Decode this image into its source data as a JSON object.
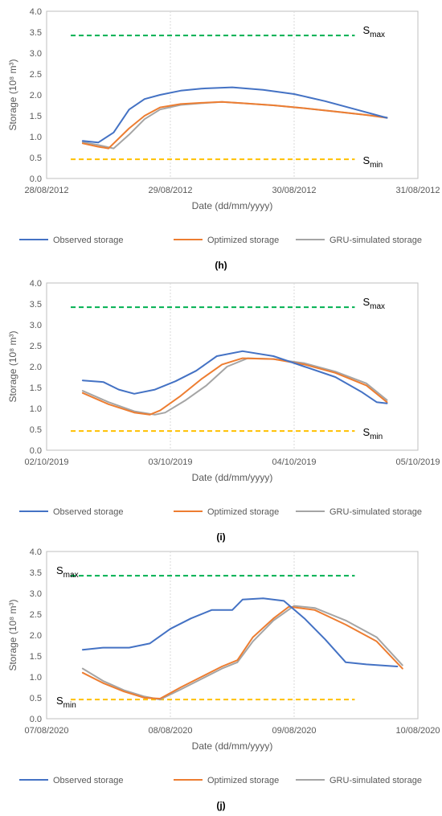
{
  "colors": {
    "observed": "#4472C4",
    "optimized": "#ED7D31",
    "gru": "#A5A5A5",
    "smax_line": "#00B050",
    "smin_line": "#FFC000",
    "grid": "#D9D9D9",
    "axis": "#BFBFBF",
    "text": "#595959"
  },
  "legend_labels": [
    "Observed storage",
    "Optimized storage",
    "GRU-simulated storage"
  ],
  "chart_data": [
    {
      "type": "line",
      "caption": "(h)",
      "ylabel": "Storage (10⁸ m³)",
      "xlabel": "Date (dd/mm/yyyy)",
      "ylim": [
        0,
        4
      ],
      "yticks": [
        "0.0",
        "0.5",
        "1.0",
        "1.5",
        "2.0",
        "2.5",
        "3.0",
        "3.5",
        "4.0"
      ],
      "xticks": [
        "28/08/2012",
        "29/08/2012",
        "30/08/2012",
        "31/08/2012"
      ],
      "smax": {
        "value": 3.42,
        "label": "S",
        "sub": "max",
        "label_side": "right"
      },
      "smin": {
        "value": 0.46,
        "label": "S",
        "sub": "min",
        "label_side": "right"
      },
      "grid": "vertical",
      "legend_position": "bottom",
      "series": [
        {
          "name": "Observed storage",
          "color_key": "observed",
          "x": [
            "28/08/2012 07:00",
            "28/08/2012 10:00",
            "28/08/2012 13:00",
            "28/08/2012 16:00",
            "28/08/2012 19:00",
            "28/08/2012 22:00",
            "29/08/2012 02:00",
            "29/08/2012 06:00",
            "29/08/2012 12:00",
            "29/08/2012 18:00",
            "30/08/2012 00:00",
            "30/08/2012 06:00",
            "30/08/2012 12:00",
            "30/08/2012 18:00"
          ],
          "y": [
            0.9,
            0.86,
            1.1,
            1.65,
            1.9,
            2.0,
            2.1,
            2.15,
            2.18,
            2.12,
            2.02,
            1.85,
            1.65,
            1.45
          ]
        },
        {
          "name": "Optimized storage",
          "color_key": "optimized",
          "x": [
            "28/08/2012 07:00",
            "28/08/2012 10:00",
            "28/08/2012 12:00",
            "28/08/2012 16:00",
            "28/08/2012 19:00",
            "28/08/2012 22:00",
            "29/08/2012 02:00",
            "29/08/2012 06:00",
            "29/08/2012 10:00",
            "29/08/2012 14:00",
            "29/08/2012 20:00",
            "30/08/2012 02:00",
            "30/08/2012 08:00",
            "30/08/2012 14:00",
            "30/08/2012 18:00"
          ],
          "y": [
            0.84,
            0.76,
            0.72,
            1.2,
            1.5,
            1.7,
            1.78,
            1.81,
            1.83,
            1.8,
            1.75,
            1.68,
            1.6,
            1.52,
            1.45
          ]
        },
        {
          "name": "GRU-simulated storage",
          "color_key": "gru",
          "x": [
            "28/08/2012 07:00",
            "28/08/2012 10:00",
            "28/08/2012 13:00",
            "28/08/2012 16:00",
            "28/08/2012 19:00",
            "28/08/2012 22:00",
            "29/08/2012 02:00",
            "29/08/2012 06:00",
            "29/08/2012 10:00",
            "29/08/2012 14:00",
            "29/08/2012 20:00",
            "30/08/2012 02:00",
            "30/08/2012 08:00",
            "30/08/2012 14:00",
            "30/08/2012 18:00"
          ],
          "y": [
            0.87,
            0.8,
            0.72,
            1.05,
            1.42,
            1.65,
            1.76,
            1.8,
            1.83,
            1.8,
            1.75,
            1.68,
            1.6,
            1.52,
            1.46
          ]
        }
      ]
    },
    {
      "type": "line",
      "caption": "(i)",
      "ylabel": "Storage (10⁸ m³)",
      "xlabel": "Date (dd/mm/yyyy)",
      "ylim": [
        0,
        4
      ],
      "yticks": [
        "0.0",
        "0.5",
        "1.0",
        "1.5",
        "2.0",
        "2.5",
        "3.0",
        "3.5",
        "4.0"
      ],
      "xticks": [
        "02/10/2019",
        "03/10/2019",
        "04/10/2019",
        "05/10/2019"
      ],
      "smax": {
        "value": 3.42,
        "label": "S",
        "sub": "max",
        "label_side": "right"
      },
      "smin": {
        "value": 0.46,
        "label": "S",
        "sub": "min",
        "label_side": "right"
      },
      "grid": "vertical",
      "legend_position": "bottom",
      "series": [
        {
          "name": "Observed storage",
          "color_key": "observed",
          "x": [
            "02/10/2019 07:00",
            "02/10/2019 11:00",
            "02/10/2019 14:00",
            "02/10/2019 17:00",
            "02/10/2019 21:00",
            "03/10/2019 01:00",
            "03/10/2019 05:00",
            "03/10/2019 09:00",
            "03/10/2019 14:00",
            "03/10/2019 20:00",
            "04/10/2019 02:00",
            "04/10/2019 08:00",
            "04/10/2019 13:00",
            "04/10/2019 16:00",
            "04/10/2019 18:00"
          ],
          "y": [
            1.67,
            1.63,
            1.45,
            1.35,
            1.45,
            1.65,
            1.9,
            2.25,
            2.37,
            2.25,
            2.0,
            1.75,
            1.4,
            1.15,
            1.12
          ]
        },
        {
          "name": "Optimized storage",
          "color_key": "optimized",
          "x": [
            "02/10/2019 07:00",
            "02/10/2019 12:00",
            "02/10/2019 17:00",
            "02/10/2019 20:00",
            "02/10/2019 22:00",
            "03/10/2019 02:00",
            "03/10/2019 06:00",
            "03/10/2019 10:00",
            "03/10/2019 14:00",
            "03/10/2019 20:00",
            "04/10/2019 02:00",
            "04/10/2019 08:00",
            "04/10/2019 14:00",
            "04/10/2019 18:00"
          ],
          "y": [
            1.37,
            1.1,
            0.9,
            0.85,
            0.95,
            1.3,
            1.7,
            2.05,
            2.2,
            2.18,
            2.05,
            1.85,
            1.55,
            1.15
          ]
        },
        {
          "name": "GRU-simulated storage",
          "color_key": "gru",
          "x": [
            "02/10/2019 07:00",
            "02/10/2019 12:00",
            "02/10/2019 17:00",
            "02/10/2019 21:00",
            "02/10/2019 23:00",
            "03/10/2019 03:00",
            "03/10/2019 07:00",
            "03/10/2019 11:00",
            "03/10/2019 15:00",
            "03/10/2019 20:00",
            "04/10/2019 02:00",
            "04/10/2019 08:00",
            "04/10/2019 14:00",
            "04/10/2019 18:00"
          ],
          "y": [
            1.42,
            1.15,
            0.93,
            0.85,
            0.9,
            1.2,
            1.55,
            2.0,
            2.2,
            2.18,
            2.08,
            1.88,
            1.6,
            1.2
          ]
        }
      ]
    },
    {
      "type": "line",
      "caption": "(j)",
      "ylabel": "Storage (10⁸ m³)",
      "xlabel": "Date (dd/mm/yyyy)",
      "ylim": [
        0,
        4
      ],
      "yticks": [
        "0.0",
        "0.5",
        "1.0",
        "1.5",
        "2.0",
        "2.5",
        "3.0",
        "3.5",
        "4.0"
      ],
      "xticks": [
        "07/08/2020",
        "08/08/2020",
        "09/08/2020",
        "10/08/2020"
      ],
      "smax": {
        "value": 3.42,
        "label": "S",
        "sub": "max",
        "label_side": "left"
      },
      "smin": {
        "value": 0.46,
        "label": "S",
        "sub": "min",
        "label_side": "left"
      },
      "grid": "vertical",
      "legend_position": "bottom",
      "series": [
        {
          "name": "Observed storage",
          "color_key": "observed",
          "x": [
            "07/08/2020 07:00",
            "07/08/2020 11:00",
            "07/08/2020 16:00",
            "07/08/2020 20:00",
            "08/08/2020 00:00",
            "08/08/2020 04:00",
            "08/08/2020 08:00",
            "08/08/2020 10:00",
            "08/08/2020 12:00",
            "08/08/2020 14:00",
            "08/08/2020 18:00",
            "08/08/2020 22:00",
            "09/08/2020 02:00",
            "09/08/2020 06:00",
            "09/08/2020 10:00",
            "09/08/2020 14:00",
            "09/08/2020 20:00"
          ],
          "y": [
            1.65,
            1.7,
            1.7,
            1.8,
            2.15,
            2.4,
            2.6,
            2.6,
            2.6,
            2.85,
            2.88,
            2.82,
            2.4,
            1.9,
            1.35,
            1.3,
            1.25
          ]
        },
        {
          "name": "Optimized storage",
          "color_key": "optimized",
          "x": [
            "07/08/2020 07:00",
            "07/08/2020 11:00",
            "07/08/2020 15:00",
            "07/08/2020 19:00",
            "07/08/2020 22:00",
            "08/08/2020 02:00",
            "08/08/2020 06:00",
            "08/08/2020 10:00",
            "08/08/2020 13:00",
            "08/08/2020 16:00",
            "08/08/2020 20:00",
            "08/08/2020 23:00",
            "09/08/2020 04:00",
            "09/08/2020 10:00",
            "09/08/2020 16:00",
            "09/08/2020 21:00"
          ],
          "y": [
            1.1,
            0.85,
            0.65,
            0.5,
            0.48,
            0.75,
            1.0,
            1.25,
            1.4,
            1.95,
            2.4,
            2.68,
            2.6,
            2.25,
            1.85,
            1.2
          ]
        },
        {
          "name": "GRU-simulated storage",
          "color_key": "gru",
          "x": [
            "07/08/2020 07:00",
            "07/08/2020 11:00",
            "07/08/2020 15:00",
            "07/08/2020 19:00",
            "07/08/2020 22:00",
            "08/08/2020 02:00",
            "08/08/2020 06:00",
            "08/08/2020 10:00",
            "08/08/2020 13:00",
            "08/08/2020 16:00",
            "08/08/2020 20:00",
            "09/08/2020 00:00",
            "09/08/2020 04:00",
            "09/08/2020 10:00",
            "09/08/2020 16:00",
            "09/08/2020 21:00"
          ],
          "y": [
            1.2,
            0.9,
            0.68,
            0.53,
            0.46,
            0.7,
            0.95,
            1.2,
            1.35,
            1.85,
            2.35,
            2.7,
            2.65,
            2.35,
            1.95,
            1.28
          ]
        }
      ]
    }
  ]
}
